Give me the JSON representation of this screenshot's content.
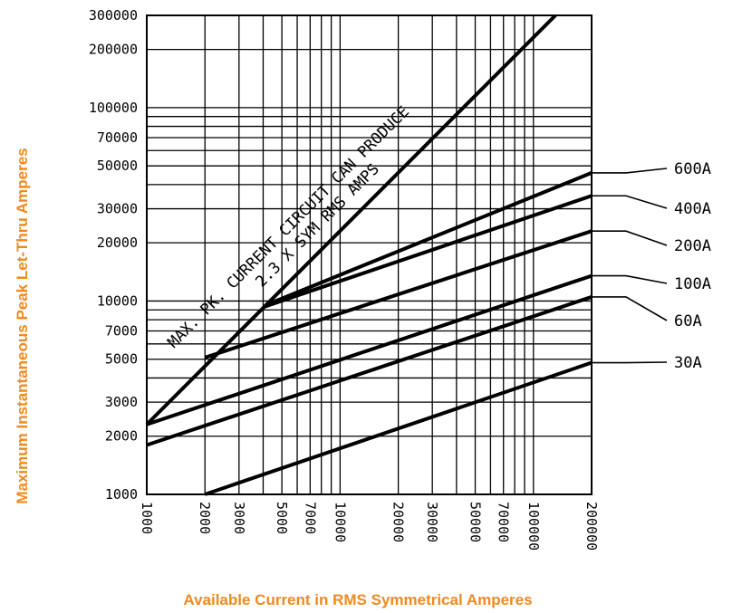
{
  "chart_data": {
    "type": "line",
    "title": "",
    "xlabel": "Available Current in RMS Symmetrical Amperes",
    "ylabel": "Maximum Instantaneous Peak Let-Thru Amperes",
    "x_scale": "log",
    "y_scale": "log",
    "xlim": [
      1000,
      200000
    ],
    "ylim": [
      1000,
      300000
    ],
    "x_ticks": [
      "1000",
      "2000",
      "3000",
      "5000",
      "7000",
      "10000",
      "20000",
      "30000",
      "50000",
      "70000",
      "100000",
      "200000"
    ],
    "y_ticks": [
      "1000",
      "2000",
      "3000",
      "5000",
      "7000",
      "10000",
      "20000",
      "30000",
      "50000",
      "70000",
      "100000",
      "200000",
      "300000"
    ],
    "x_tick_values": [
      1000,
      2000,
      3000,
      5000,
      7000,
      10000,
      20000,
      30000,
      50000,
      70000,
      100000,
      200000
    ],
    "y_tick_values": [
      1000,
      2000,
      3000,
      5000,
      7000,
      10000,
      20000,
      30000,
      50000,
      70000,
      100000,
      200000,
      300000
    ],
    "grid": true,
    "annotation": {
      "line1": "MAX. PK. CURRENT CIRCUIT CAN PRODUCE",
      "line2": "2.3 X SYM RMS AMPS"
    },
    "max_line": {
      "x": [
        1000,
        130000
      ],
      "y": [
        2300,
        300000
      ]
    },
    "series": [
      {
        "name": "600A",
        "x": [
          4200,
          200000
        ],
        "y": [
          9600,
          46000
        ]
      },
      {
        "name": "400A",
        "x": [
          4000,
          200000
        ],
        "y": [
          9300,
          35000
        ]
      },
      {
        "name": "200A",
        "x": [
          2000,
          200000
        ],
        "y": [
          5100,
          23000
        ]
      },
      {
        "name": "100A",
        "x": [
          1000,
          200000
        ],
        "y": [
          2300,
          13500
        ]
      },
      {
        "name": "60A",
        "x": [
          1000,
          200000
        ],
        "y": [
          1800,
          10500
        ]
      },
      {
        "name": "30A",
        "x": [
          2000,
          200000
        ],
        "y": [
          1000,
          4800
        ]
      }
    ]
  }
}
